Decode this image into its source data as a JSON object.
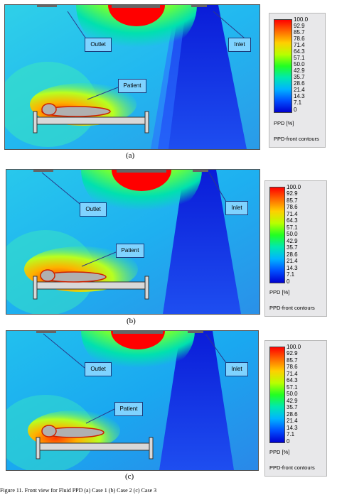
{
  "panels": [
    {
      "label": "(a)",
      "outlet_label": "Outlet",
      "inlet_label": "Inlet",
      "patient_label": "Patient"
    },
    {
      "label": "(b)",
      "outlet_label": "Outlet",
      "inlet_label": "Inlet",
      "patient_label": "Patient"
    },
    {
      "label": "(c)",
      "outlet_label": "Outlet",
      "inlet_label": "Inlet",
      "patient_label": "Patient"
    }
  ],
  "legend": {
    "ticks": [
      "100.0",
      "92.9",
      "85.7",
      "78.6",
      "71.4",
      "64.3",
      "57.1",
      "50.0",
      "42.9",
      "35.7",
      "28.6",
      "21.4",
      "14.3",
      "7.1",
      "0"
    ],
    "unit_label": "PPD [%]",
    "title": "PPD-front contours",
    "gradient": [
      "#ff0000",
      "#ff6a00",
      "#ffd000",
      "#b8ff00",
      "#22ff22",
      "#00e8b0",
      "#00b4ff",
      "#0050ff",
      "#0000d0"
    ]
  },
  "caption": "Figure 11. Front view for Fluid PPD (a) Case 1 (b) Case 2 (c) Case 3"
}
